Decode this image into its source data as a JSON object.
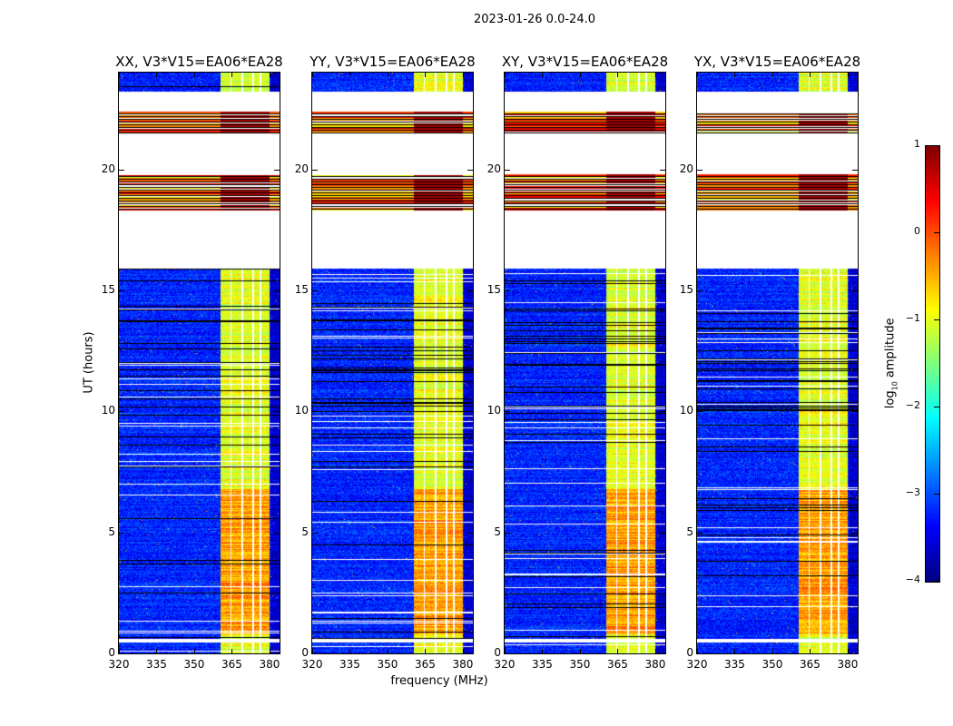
{
  "chart_data": {
    "type": "heatmap",
    "title": "2023-01-26 0.0-24.0",
    "xlabel": "frequency (MHz)",
    "ylabel": "UT (hours)",
    "xlim": [
      320,
      384
    ],
    "ylim": [
      0,
      24
    ],
    "xticks": [
      "320",
      "335",
      "350",
      "365",
      "380"
    ],
    "xtick_values": [
      320,
      335,
      350,
      365,
      380
    ],
    "yticks": [
      "0",
      "5",
      "10",
      "15",
      "20"
    ],
    "ytick_values": [
      0,
      5,
      10,
      15,
      20
    ],
    "panels": [
      {
        "title": "XX, V3*V15=EA06*EA28"
      },
      {
        "title": "YY, V3*V15=EA06*EA28"
      },
      {
        "title": "XY, V3*V15=EA06*EA28"
      },
      {
        "title": "YX, V3*V15=EA06*EA28"
      }
    ],
    "colorbar": {
      "label_main": "log",
      "label_sub": "10",
      "label_rest": " amplitude",
      "range": [
        -4,
        1
      ],
      "ticks": [
        "−4",
        "−3",
        "−2",
        "−1",
        "0",
        "1"
      ],
      "tick_values": [
        -4,
        -3,
        -2,
        -1,
        0,
        1
      ],
      "colormap": "jet"
    },
    "structure_summary": {
      "flagged_gaps_hours": [
        [
          0.45,
          0.6
        ],
        [
          15.9,
          18.3
        ],
        [
          19.8,
          21.5
        ],
        [
          22.4,
          23.2
        ]
      ],
      "high_amplitude_bands_hours": [
        [
          18.3,
          19.8
        ],
        [
          21.5,
          22.4
        ]
      ],
      "bright_band_mhz": [
        360.5,
        380
      ],
      "background_log10_amplitude": -3.2,
      "bright_band_log10_amplitude": -1.0,
      "high_amplitude_log10": 0.8
    }
  }
}
